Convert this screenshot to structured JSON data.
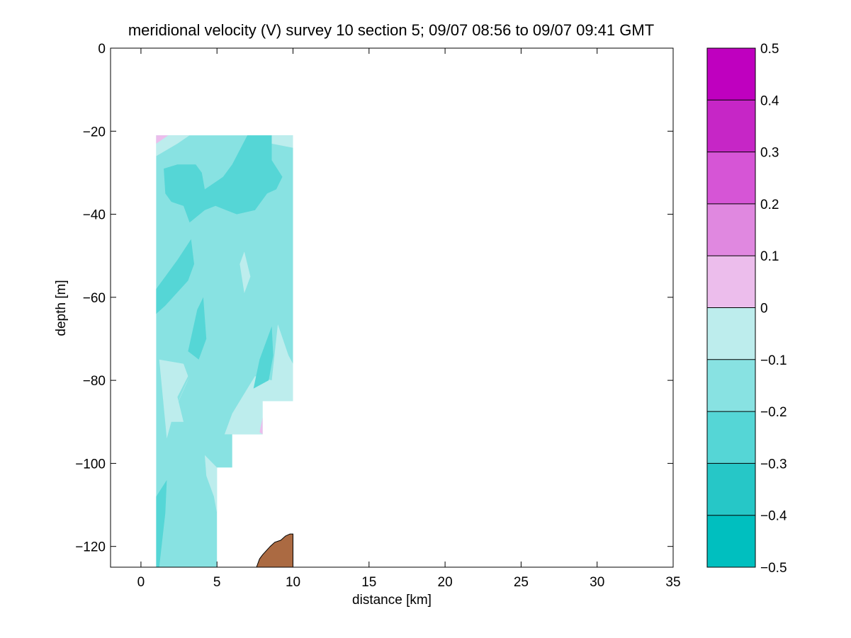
{
  "chart_data": {
    "type": "heatmap",
    "subtype": "filled-contour section",
    "title": "meridional velocity (V) survey 10 section 5; 09/07 08:56 to 09/07 09:41 GMT",
    "xlabel": "distance [km]",
    "ylabel": "depth [m]",
    "xlim": [
      -2,
      35
    ],
    "ylim": [
      -125,
      0
    ],
    "xticks": [
      0,
      5,
      10,
      15,
      20,
      25,
      30,
      35
    ],
    "yticks": [
      0,
      -20,
      -40,
      -60,
      -80,
      -100,
      -120
    ],
    "x_tick_labels": [
      "0",
      "5",
      "10",
      "15",
      "20",
      "25",
      "30",
      "35"
    ],
    "y_tick_labels": [
      "0",
      "−20",
      "−40",
      "−60",
      "−80",
      "−100",
      "−120"
    ],
    "grid": false,
    "colorbar": {
      "levels": [
        -0.5,
        -0.4,
        -0.3,
        -0.2,
        -0.1,
        0,
        0.1,
        0.2,
        0.3,
        0.4,
        0.5
      ],
      "tick_labels": [
        "−0.5",
        "−0.4",
        "−0.3",
        "−0.2",
        "−0.1",
        "0",
        "0.1",
        "0.2",
        "0.3",
        "0.4",
        "0.5"
      ],
      "colors": [
        "#00bfbf",
        "#26c7c7",
        "#55d6d6",
        "#88e2e2",
        "#bdeded",
        "#ecbdec",
        "#e088e0",
        "#d655d6",
        "#c626c6",
        "#bf00bf"
      ]
    },
    "data_extent": {
      "x_range_km": [
        1,
        10
      ],
      "top_depth_m": -21,
      "bottom_profile": [
        {
          "x_start": 1,
          "x_end": 5,
          "depth": -125
        },
        {
          "x_start": 5,
          "x_end": 6,
          "depth": -101
        },
        {
          "x_start": 6,
          "x_end": 8,
          "depth": -93
        },
        {
          "x_start": 8,
          "x_end": 10,
          "depth": -85
        }
      ]
    },
    "regions": [
      {
        "class": "-0.2 to -0.1",
        "color": "#88e2e2",
        "poly": [
          [
            1,
            -21
          ],
          [
            10,
            -21
          ],
          [
            10,
            -85
          ],
          [
            8,
            -85
          ],
          [
            8,
            -93
          ],
          [
            6,
            -93
          ],
          [
            6,
            -101
          ],
          [
            5,
            -101
          ],
          [
            5,
            -125
          ],
          [
            1,
            -125
          ]
        ]
      },
      {
        "class": "-0.1 to 0",
        "color": "#bdeded",
        "poly": [
          [
            1,
            -21
          ],
          [
            3.2,
            -21
          ],
          [
            2.4,
            -23
          ],
          [
            1,
            -26
          ]
        ]
      },
      {
        "class": "-0.1 to 0",
        "color": "#bdeded",
        "poly": [
          [
            10,
            -21
          ],
          [
            7.2,
            -21
          ],
          [
            8.6,
            -23
          ],
          [
            10,
            -24
          ]
        ]
      },
      {
        "class": "-0.1 to 0",
        "color": "#bdeded",
        "poly": [
          [
            10,
            -76
          ],
          [
            9.7,
            -74
          ],
          [
            9,
            -66.5
          ],
          [
            8.6,
            -80
          ],
          [
            7.5,
            -79
          ],
          [
            7,
            -82
          ],
          [
            6,
            -88
          ],
          [
            5.5,
            -93
          ],
          [
            6,
            -93
          ],
          [
            8,
            -93
          ],
          [
            8,
            -85
          ],
          [
            10,
            -85
          ]
        ]
      },
      {
        "class": "-0.1 to 0",
        "color": "#bdeded",
        "poly": [
          [
            6.5,
            -52
          ],
          [
            6.8,
            -49
          ],
          [
            7.2,
            -55
          ],
          [
            6.8,
            -59
          ]
        ]
      },
      {
        "class": "-0.1 to 0",
        "color": "#bdeded",
        "poly": [
          [
            5,
            -101
          ],
          [
            5,
            -112
          ],
          [
            4.8,
            -108
          ],
          [
            4.3,
            -103
          ],
          [
            4.2,
            -98
          ]
        ]
      },
      {
        "class": "-0.1 to 0",
        "color": "#bdeded",
        "poly": [
          [
            1.2,
            -75
          ],
          [
            2.8,
            -76
          ],
          [
            3.1,
            -79
          ],
          [
            2.4,
            -84
          ],
          [
            2.8,
            -90
          ],
          [
            2,
            -90
          ],
          [
            1.7,
            -94
          ]
        ]
      },
      {
        "class": "-0.1 to 0",
        "color": "#bdeded",
        "poly": [
          [
            3,
            -80.5
          ],
          [
            3.2,
            -79
          ],
          [
            2.6,
            -84
          ],
          [
            2.1,
            -88
          ]
        ]
      },
      {
        "class": "-0.3 to -0.2",
        "color": "#55d6d6",
        "poly": [
          [
            1.5,
            -29
          ],
          [
            2.4,
            -28
          ],
          [
            3.6,
            -28
          ],
          [
            4,
            -30
          ],
          [
            4.2,
            -34
          ],
          [
            5.4,
            -31
          ],
          [
            6,
            -28
          ],
          [
            7,
            -21
          ],
          [
            8.6,
            -21
          ],
          [
            8.6,
            -27
          ],
          [
            9.3,
            -31
          ],
          [
            8.9,
            -34
          ],
          [
            8.3,
            -35
          ],
          [
            7.5,
            -39
          ],
          [
            6.3,
            -40
          ],
          [
            5.6,
            -39
          ],
          [
            4.9,
            -38
          ],
          [
            4.2,
            -39
          ],
          [
            3.2,
            -42
          ],
          [
            2.8,
            -38
          ],
          [
            2,
            -37
          ],
          [
            1.6,
            -35
          ]
        ]
      },
      {
        "class": "-0.3 to -0.2",
        "color": "#55d6d6",
        "poly": [
          [
            1,
            -58
          ],
          [
            2.4,
            -51
          ],
          [
            3.3,
            -46
          ],
          [
            3.5,
            -52
          ],
          [
            3.1,
            -56
          ],
          [
            1.6,
            -62
          ],
          [
            1,
            -64
          ]
        ]
      },
      {
        "class": "-0.3 to -0.2",
        "color": "#55d6d6",
        "poly": [
          [
            3.1,
            -73
          ],
          [
            3.7,
            -63
          ],
          [
            4.1,
            -60
          ],
          [
            4.3,
            -70
          ],
          [
            3.8,
            -75
          ]
        ]
      },
      {
        "class": "-0.3 to -0.2",
        "color": "#55d6d6",
        "poly": [
          [
            7.4,
            -82
          ],
          [
            7.8,
            -75
          ],
          [
            8.6,
            -67
          ],
          [
            8.7,
            -74
          ],
          [
            8.4,
            -80
          ]
        ]
      },
      {
        "class": "-0.3 to -0.2",
        "color": "#55d6d6",
        "poly": [
          [
            1,
            -108
          ],
          [
            1.7,
            -104
          ],
          [
            1.6,
            -112
          ],
          [
            1.2,
            -125
          ],
          [
            1,
            -125
          ]
        ]
      },
      {
        "class": "0 to 0.1",
        "color": "#ecbdec",
        "poly": [
          [
            1,
            -21
          ],
          [
            1.8,
            -21
          ],
          [
            1,
            -23
          ]
        ]
      },
      {
        "class": "0 to 0.1",
        "color": "#ecbdec",
        "poly": [
          [
            7.8,
            -92.5
          ],
          [
            8,
            -89
          ],
          [
            8,
            -93
          ]
        ]
      }
    ],
    "bathymetry": {
      "color": "#ab6a42",
      "poly": [
        [
          7.6,
          -125
        ],
        [
          7.8,
          -123
        ],
        [
          8,
          -122
        ],
        [
          8.5,
          -120
        ],
        [
          8.8,
          -119
        ],
        [
          9.2,
          -118.5
        ],
        [
          9.5,
          -117.5
        ],
        [
          9.8,
          -117
        ],
        [
          10,
          -117
        ],
        [
          10,
          -125
        ]
      ]
    }
  }
}
